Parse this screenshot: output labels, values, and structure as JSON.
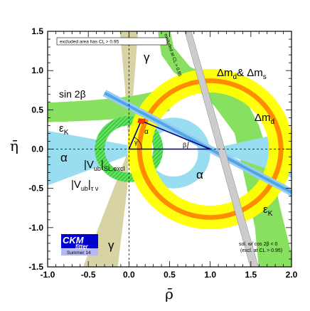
{
  "chart_data": {
    "type": "contour",
    "xlabel": "ρ̄",
    "ylabel": "η̄",
    "xlim": [
      -1.0,
      2.0
    ],
    "ylim": [
      -1.5,
      1.5
    ],
    "x_ticks": [
      "-1.0",
      "-0.5",
      "0.0",
      "0.5",
      "1.0",
      "1.5",
      "2.0"
    ],
    "y_ticks": [
      "-1.5",
      "-1.0",
      "-0.5",
      "0.0",
      "0.5",
      "1.0",
      "1.5"
    ],
    "apex": {
      "rho": 0.15,
      "eta": 0.36
    },
    "excluded_note": "excluded area has CL > 0.95",
    "excluded_gamma_note": "excluded at CL > 0.95",
    "sol_note_1": "sol. w/ cos 2β < 0",
    "sol_note_2": "(excl. at CL > 0.95)",
    "logo": {
      "line1": "CKM",
      "line2": "fitter",
      "line3": "Summer 14"
    },
    "labels": {
      "gamma_top": "γ",
      "gamma_bottom": "γ",
      "alpha_left": "α",
      "alpha_right": "α",
      "alpha_apex": "α",
      "beta_angle": "β",
      "gamma_angle": "γ",
      "epsilon_left": "ε",
      "epsilon_right": "ε",
      "epsilon_sub": "K",
      "sin2beta": "sin 2β",
      "dmd_dms": "Δm",
      "dmd_dms_sub1": "d",
      "dmd_dms_amp": "& Δm",
      "dmd_dms_sub2": "s",
      "dmd": "Δm",
      "dmd_sub": "d",
      "vub_sl": "|V",
      "vub_sl_sub": "ub",
      "vub_sl_suffix": "|",
      "vub_sl_sub2": "SL,excl",
      "vub_tau": "|V",
      "vub_tau_sub": "ub",
      "vub_tau_suffix": "|",
      "vub_tau_sub2": "τ ν"
    },
    "colors": {
      "yellow": "#ffff00",
      "orange": "#ff8c00",
      "green": "#88e060",
      "vub_green": "#00cc00",
      "lightblue": "#99ddf0",
      "blue": "#4da6e8",
      "khaki": "#d8d3a5",
      "triangle": "#000080",
      "logo_blue": "#0000cc",
      "logo_light": "#b8b8f0"
    }
  }
}
